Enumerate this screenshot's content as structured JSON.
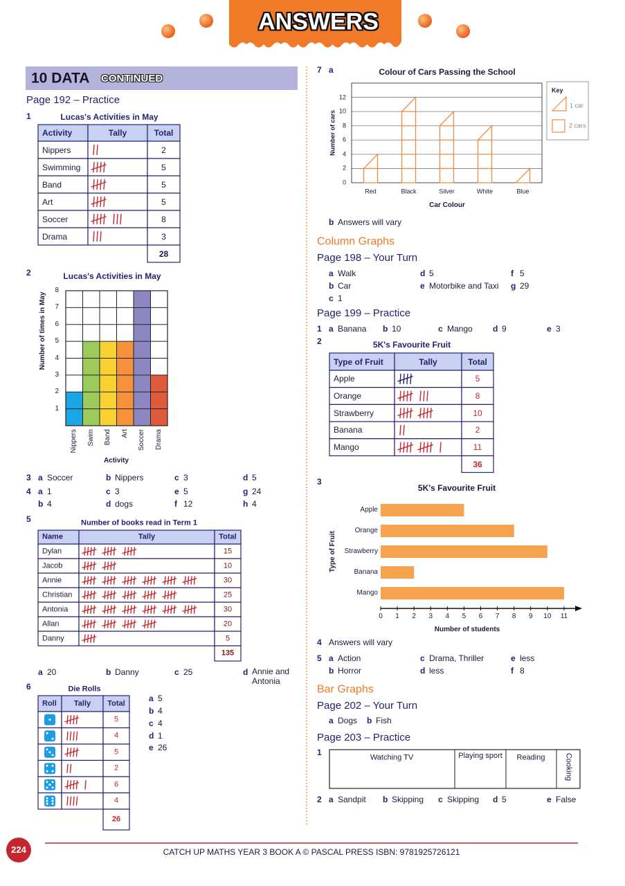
{
  "header": {
    "title": "ANSWERS"
  },
  "section": {
    "title": "10 DATA",
    "subtitle": "CONTINUED"
  },
  "left": {
    "page192": "Page 192 – Practice",
    "q1": {
      "number": "1",
      "title": "Lucas's Activities in May",
      "columns": [
        "Activity",
        "Tally",
        "Total"
      ],
      "rows": [
        [
          "Nippers",
          2
        ],
        [
          "Swimming",
          5
        ],
        [
          "Band",
          5
        ],
        [
          "Art",
          5
        ],
        [
          "Soccer",
          8
        ],
        [
          "Drama",
          3
        ]
      ],
      "total": 28
    },
    "q2": {
      "number": "2"
    },
    "q3": {
      "number": "3",
      "answers": [
        {
          "letter": "a",
          "text": "Soccer"
        },
        {
          "letter": "b",
          "text": "Nippers"
        },
        {
          "letter": "c",
          "text": 3
        },
        {
          "letter": "d",
          "text": 5
        }
      ]
    },
    "q4": {
      "number": "4",
      "answers": [
        {
          "letter": "a",
          "text": 1
        },
        {
          "letter": "c",
          "text": 3
        },
        {
          "letter": "e",
          "text": 5
        },
        {
          "letter": "g",
          "text": 24
        },
        {
          "letter": "b",
          "text": 4
        },
        {
          "letter": "d",
          "text": "dogs"
        },
        {
          "letter": "f",
          "text": 12
        },
        {
          "letter": "h",
          "text": 4
        }
      ]
    },
    "q5": {
      "number": "5",
      "title": "Number of books read in Term 1",
      "columns": [
        "Name",
        "Tally",
        "Total"
      ],
      "rows": [
        [
          "Dylan",
          15
        ],
        [
          "Jacob",
          10
        ],
        [
          "Annie",
          30
        ],
        [
          "Christian",
          25
        ],
        [
          "Antonia",
          30
        ],
        [
          "Allan",
          20
        ],
        [
          "Danny",
          5
        ]
      ],
      "total": 135,
      "answers": [
        {
          "letter": "a",
          "text": 20
        },
        {
          "letter": "b",
          "text": "Danny"
        },
        {
          "letter": "c",
          "text": 25
        },
        {
          "letter": "d",
          "text": "Annie and Antonia"
        }
      ]
    },
    "q6": {
      "number": "6",
      "title": "Die Rolls",
      "columns": [
        "Roll",
        "Tally",
        "Total"
      ],
      "rows": [
        [
          1,
          5
        ],
        [
          2,
          4
        ],
        [
          3,
          5
        ],
        [
          4,
          2
        ],
        [
          5,
          6
        ],
        [
          6,
          4
        ]
      ],
      "total": 26,
      "answers": [
        {
          "letter": "a",
          "text": 5
        },
        {
          "letter": "b",
          "text": 4
        },
        {
          "letter": "c",
          "text": 4
        },
        {
          "letter": "d",
          "text": 1
        },
        {
          "letter": "e",
          "text": 26
        }
      ]
    }
  },
  "right": {
    "q7": {
      "number": "7",
      "part": "a",
      "b": {
        "letter": "b",
        "text": "Answers will vary"
      }
    },
    "column_graphs": "Column Graphs",
    "page198": "Page 198 – Your Turn",
    "p198_answers": [
      {
        "letter": "a",
        "text": "Walk"
      },
      {
        "letter": "d",
        "text": 5
      },
      {
        "letter": "f",
        "text": 5
      },
      {
        "letter": "b",
        "text": "Car"
      },
      {
        "letter": "e",
        "text": "Motorbike and Taxi"
      },
      {
        "letter": "g",
        "text": 29
      },
      {
        "letter": "c",
        "text": 1
      }
    ],
    "page199": "Page 199 – Practice",
    "p199_q1": {
      "number": "1",
      "answers": [
        {
          "letter": "a",
          "text": "Banana"
        },
        {
          "letter": "b",
          "text": 10
        },
        {
          "letter": "c",
          "text": "Mango"
        },
        {
          "letter": "d",
          "text": 9
        },
        {
          "letter": "e",
          "text": 3
        }
      ]
    },
    "p199_q2": {
      "number": "2",
      "title": "5K's Favourite Fruit",
      "columns": [
        "Type of Fruit",
        "Tally",
        "Total"
      ],
      "rows": [
        [
          "Apple",
          5
        ],
        [
          "Orange",
          8
        ],
        [
          "Strawberry",
          10
        ],
        [
          "Banana",
          2
        ],
        [
          "Mango",
          11
        ]
      ],
      "total": 36
    },
    "p199_q3": {
      "number": "3"
    },
    "p199_q4": {
      "number": "4",
      "text": "Answers will vary"
    },
    "p199_q5": {
      "number": "5",
      "answers": [
        {
          "letter": "a",
          "text": "Action"
        },
        {
          "letter": "c",
          "text": "Drama, Thriller"
        },
        {
          "letter": "e",
          "text": "less"
        },
        {
          "letter": "b",
          "text": "Horror"
        },
        {
          "letter": "d",
          "text": "less"
        },
        {
          "letter": "f",
          "text": 8
        }
      ]
    },
    "bar_graphs": "Bar Graphs",
    "page202": "Page 202 – Your Turn",
    "p202_answers": [
      {
        "letter": "a",
        "text": "Dogs"
      },
      {
        "letter": "b",
        "text": "Fish"
      }
    ],
    "page203": "Page 203 – Practice",
    "p203_q1": {
      "number": "1",
      "segments": [
        "Watching TV",
        "Playing sport",
        "Reading",
        "Cooking"
      ]
    },
    "p203_q2": {
      "number": "2",
      "answers": [
        {
          "letter": "a",
          "text": "Sandpit"
        },
        {
          "letter": "b",
          "text": "Skipping"
        },
        {
          "letter": "c",
          "text": "Skipping"
        },
        {
          "letter": "d",
          "text": 5
        },
        {
          "letter": "e",
          "text": "False"
        }
      ]
    }
  },
  "chart_data": [
    {
      "type": "bar",
      "title": "Lucas's Activities in May",
      "x_label": "Activity",
      "y_label": "Number of times in May",
      "categories": [
        "Nippers",
        "Swim",
        "Band",
        "Art",
        "Soccer",
        "Drama"
      ],
      "values": [
        2,
        5,
        5,
        5,
        8,
        3
      ],
      "colors": [
        "#1aa6e4",
        "#9ccb5c",
        "#f8d233",
        "#f5923b",
        "#8c87c2",
        "#e05a3c"
      ],
      "ylim": [
        0,
        8
      ],
      "yticks": [
        1,
        2,
        3,
        4,
        5,
        6,
        7,
        8
      ],
      "grid": true
    },
    {
      "type": "pictograph",
      "title": "Colour of Cars Passing the School",
      "x_label": "Car Colour",
      "y_label": "Number of cars",
      "categories": [
        "Red",
        "Black",
        "Silver",
        "White",
        "Blue"
      ],
      "values": [
        4,
        12,
        10,
        8,
        2
      ],
      "color": "#ef8a3e",
      "ylim": [
        0,
        14
      ],
      "yticks": [
        0,
        2,
        4,
        6,
        8,
        10,
        12
      ],
      "grid": true,
      "key": {
        "title": "Key",
        "items": [
          "1 car",
          "2 cars"
        ]
      }
    },
    {
      "type": "barh",
      "title": "5K's Favourite Fruit",
      "x_label": "Number of students",
      "y_label": "Type of Fruit",
      "categories": [
        "Apple",
        "Orange",
        "Strawberry",
        "Banana",
        "Mango"
      ],
      "values": [
        5,
        8,
        10,
        2,
        11
      ],
      "color": "#f6a24e",
      "xlim": [
        0,
        12
      ],
      "xticks": [
        0,
        1,
        2,
        3,
        4,
        5,
        6,
        7,
        8,
        9,
        10,
        11
      ]
    }
  ],
  "footer": {
    "page_number": 224,
    "text": "CATCH UP MATHS YEAR 3 BOOK A © PASCAL PRESS ISBN: 9781925726121"
  }
}
